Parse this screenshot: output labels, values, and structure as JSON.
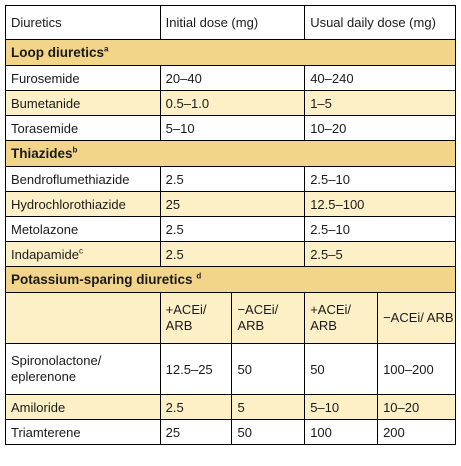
{
  "header": {
    "col1": "Diuretics",
    "col2": "Initial dose (mg)",
    "col3": "Usual daily dose (mg)"
  },
  "sections": [
    {
      "title": "Loop diuretics",
      "sup": "a",
      "rows": [
        {
          "drug": "Furosemide",
          "initial": "20–40",
          "usual": "40–240",
          "shade": "white"
        },
        {
          "drug": "Bumetanide",
          "initial": "0.5–1.0",
          "usual": "1–5",
          "shade": "yellow"
        },
        {
          "drug": "Torasemide",
          "initial": "5–10",
          "usual": "10–20",
          "shade": "white"
        }
      ]
    },
    {
      "title": "Thiazides",
      "sup": "b",
      "rows": [
        {
          "drug": "Bendroflumethiazide",
          "initial": "2.5",
          "usual": "2.5–10",
          "shade": "white"
        },
        {
          "drug": "Hydrochlorothiazide",
          "initial": "25",
          "usual": "12.5–100",
          "shade": "yellow"
        },
        {
          "drug": "Metolazone",
          "initial": "2.5",
          "usual": "2.5–10",
          "shade": "white"
        },
        {
          "drug": "Indapamide",
          "drug_sup": "c",
          "initial": "2.5",
          "usual": "2.5–5",
          "shade": "yellow"
        }
      ]
    },
    {
      "title": "Potassium-sparing diuretics",
      "sup": "d",
      "subheaders": [
        "+ACEi/ ARB",
        "−ACEi/ ARB",
        "+ACEi/ ARB",
        "−ACEi/ ARB"
      ],
      "rows": [
        {
          "drug": "Spironolactone/ eplerenone",
          "values": [
            "12.5–25",
            "50",
            "50",
            "100–200"
          ],
          "shade": "white"
        },
        {
          "drug": "Amiloride",
          "values": [
            "2.5",
            "5",
            "5–10",
            "10–20"
          ],
          "shade": "yellow"
        },
        {
          "drug": "Triamterene",
          "values": [
            "25",
            "50",
            "100",
            "200"
          ],
          "shade": "white"
        }
      ]
    }
  ]
}
